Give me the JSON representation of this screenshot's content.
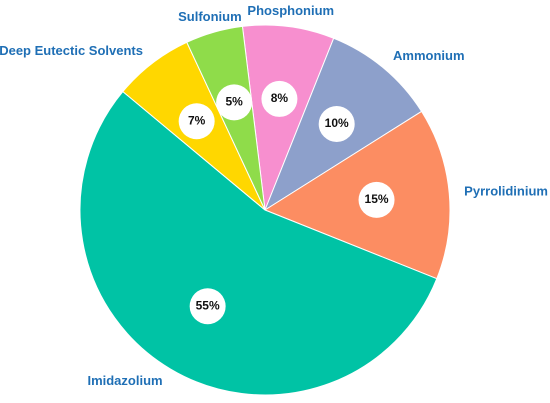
{
  "chart_data": {
    "type": "pie",
    "categories": [
      "Phosphonium",
      "Ammonium",
      "Pyrrolidinium",
      "Imidazolium",
      "Deep Eutectic Solvents",
      "Sulfonium"
    ],
    "values": [
      8,
      10,
      15,
      55,
      7,
      5
    ],
    "value_labels": [
      "8%",
      "10%",
      "15%",
      "55%",
      "7%",
      "5%"
    ],
    "colors": [
      "#f78fcf",
      "#8da0cb",
      "#fc8d62",
      "#00c3a5",
      "#ffd700",
      "#8fdc4a"
    ]
  }
}
